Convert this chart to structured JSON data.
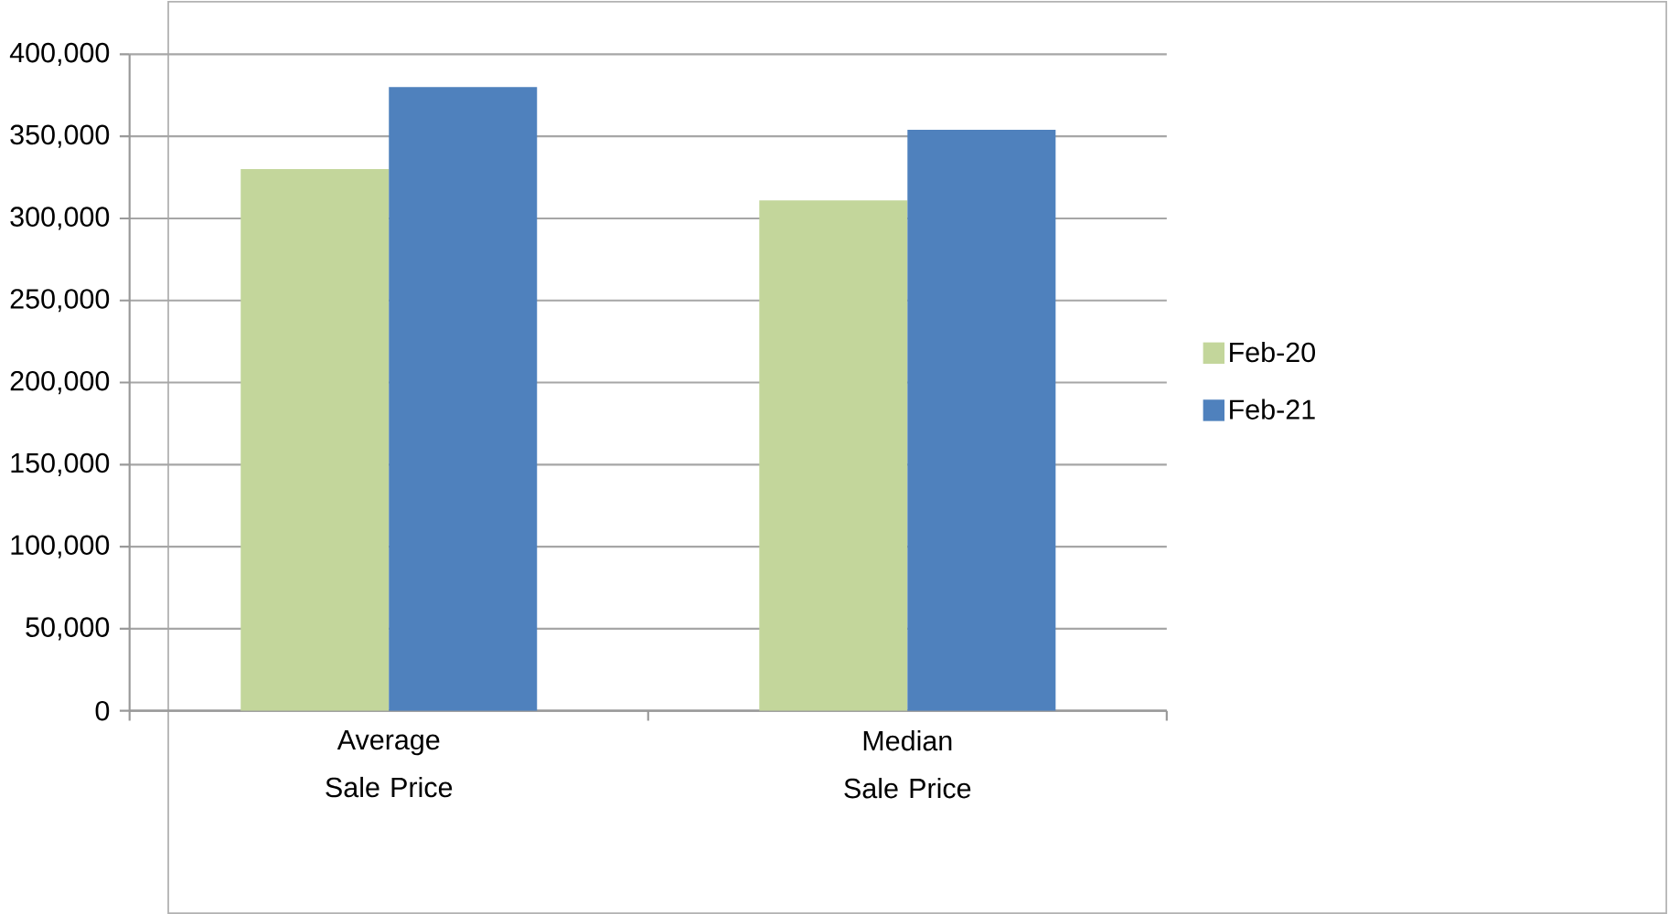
{
  "chart_data": {
    "type": "bar",
    "categories": [
      "Average Sale Price",
      "Median Sale Price"
    ],
    "series": [
      {
        "name": "Feb-20",
        "color": "#c3d69b",
        "values": [
          330000,
          311000
        ]
      },
      {
        "name": "Feb-21",
        "color": "#4f81bd",
        "values": [
          380000,
          354000
        ]
      }
    ],
    "ylim": [
      0,
      400000
    ],
    "yticks": [
      0,
      {
        "value": 50000,
        "label": "50,000"
      },
      {
        "value": 100000,
        "label": "100,000"
      },
      {
        "value": 150000,
        "label": "150,000"
      },
      {
        "value": 200000,
        "label": "200,000"
      },
      {
        "value": 250000,
        "label": "250,000"
      },
      {
        "value": 300000,
        "label": "300,000"
      },
      {
        "value": 350000,
        "label": "350,000"
      },
      {
        "value": 400000,
        "label": "400,000"
      }
    ],
    "grid": "y",
    "legend": "right"
  }
}
